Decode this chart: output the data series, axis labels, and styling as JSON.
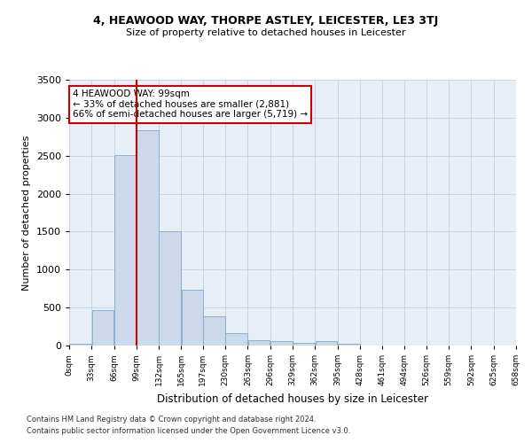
{
  "title": "4, HEAWOOD WAY, THORPE ASTLEY, LEICESTER, LE3 3TJ",
  "subtitle": "Size of property relative to detached houses in Leicester",
  "xlabel": "Distribution of detached houses by size in Leicester",
  "ylabel": "Number of detached properties",
  "bar_color": "#ccd9ea",
  "bar_edge_color": "#7fa8cc",
  "grid_color": "#c5cfe0",
  "background_color": "#e8eef6",
  "vline_x": 99,
  "vline_color": "#cc0000",
  "annotation_text": "4 HEAWOOD WAY: 99sqm\n← 33% of detached houses are smaller (2,881)\n66% of semi-detached houses are larger (5,719) →",
  "annotation_box_color": "#ffffff",
  "annotation_box_edge": "#cc0000",
  "bin_edges": [
    0,
    33,
    66,
    99,
    132,
    165,
    197,
    230,
    263,
    296,
    329,
    362,
    395,
    428,
    461,
    494,
    526,
    559,
    592,
    625,
    658
  ],
  "bar_heights": [
    20,
    470,
    2510,
    2840,
    1510,
    735,
    380,
    160,
    75,
    55,
    35,
    55,
    25,
    0,
    0,
    0,
    0,
    0,
    0,
    0
  ],
  "ylim": [
    0,
    3500
  ],
  "yticks": [
    0,
    500,
    1000,
    1500,
    2000,
    2500,
    3000,
    3500
  ],
  "footnote1": "Contains HM Land Registry data © Crown copyright and database right 2024.",
  "footnote2": "Contains public sector information licensed under the Open Government Licence v3.0."
}
